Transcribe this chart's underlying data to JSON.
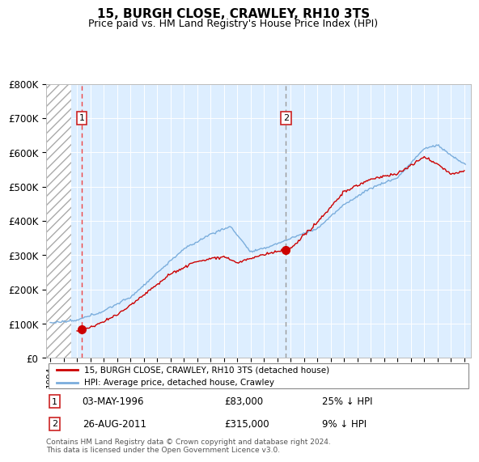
{
  "title": "15, BURGH CLOSE, CRAWLEY, RH10 3TS",
  "subtitle": "Price paid vs. HM Land Registry's House Price Index (HPI)",
  "legend_line1": "15, BURGH CLOSE, CRAWLEY, RH10 3TS (detached house)",
  "legend_line2": "HPI: Average price, detached house, Crawley",
  "annotation1": {
    "label": "1",
    "date_str": "03-MAY-1996",
    "price_str": "£83,000",
    "pct_str": "25% ↓ HPI",
    "x_year": 1996.37,
    "y_val": 83000
  },
  "annotation2": {
    "label": "2",
    "date_str": "26-AUG-2011",
    "price_str": "£315,000",
    "pct_str": "9% ↓ HPI",
    "x_year": 2011.65,
    "y_val": 315000
  },
  "footer": "Contains HM Land Registry data © Crown copyright and database right 2024.\nThis data is licensed under the Open Government Licence v3.0.",
  "plot_bg": "#ddeeff",
  "red_color": "#cc0000",
  "blue_color": "#7aaddc",
  "ann1_vline_color": "#ee4444",
  "ann2_vline_color": "#999999",
  "xmin": 1993.7,
  "xmax": 2025.5,
  "ymin": 0,
  "ymax": 800000,
  "hatch_xmax": 1995.6,
  "y_label_box": 700000,
  "yticks": [
    0,
    100000,
    200000,
    300000,
    400000,
    500000,
    600000,
    700000,
    800000
  ],
  "ylabels": [
    "£0",
    "£100K",
    "£200K",
    "£300K",
    "£400K",
    "£500K",
    "£600K",
    "£700K",
    "£800K"
  ],
  "xtick_start": 1994,
  "xtick_end": 2025
}
